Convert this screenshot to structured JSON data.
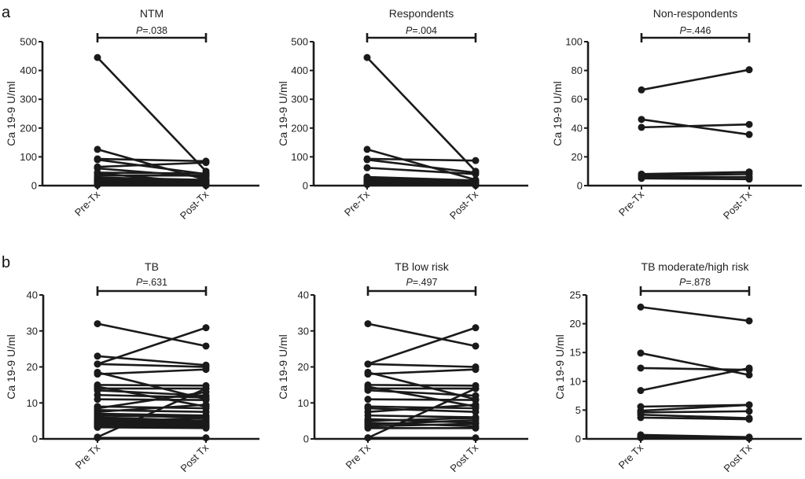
{
  "panel_labels": [
    "a",
    "b"
  ],
  "chart_data": [
    {
      "type": "line",
      "panel": "a",
      "title": "NTM",
      "ylabel": "Ca 19-9 U/ml",
      "xlabel": "",
      "categories": [
        "Pre-Tx",
        "Post-Tx"
      ],
      "ylim": [
        0,
        500
      ],
      "yticks": [
        0,
        100,
        200,
        300,
        400,
        500
      ],
      "p_value": "P=.038",
      "series": [
        {
          "name": "s1",
          "values": [
            445,
            50
          ]
        },
        {
          "name": "s2",
          "values": [
            126,
            20
          ]
        },
        {
          "name": "s3",
          "values": [
            93,
            85
          ]
        },
        {
          "name": "s4",
          "values": [
            90,
            40
          ]
        },
        {
          "name": "s5",
          "values": [
            65,
            80
          ]
        },
        {
          "name": "s6",
          "values": [
            60,
            30
          ]
        },
        {
          "name": "s7",
          "values": [
            45,
            42
          ]
        },
        {
          "name": "s8",
          "values": [
            43,
            9
          ]
        },
        {
          "name": "s9",
          "values": [
            35,
            35
          ]
        },
        {
          "name": "s10",
          "values": [
            28,
            20
          ]
        },
        {
          "name": "s11",
          "values": [
            25,
            15
          ]
        },
        {
          "name": "s12",
          "values": [
            22,
            12
          ]
        },
        {
          "name": "s13",
          "values": [
            20,
            10
          ]
        },
        {
          "name": "s14",
          "values": [
            18,
            8
          ]
        },
        {
          "name": "s15",
          "values": [
            15,
            6
          ]
        },
        {
          "name": "s16",
          "values": [
            12,
            5
          ]
        },
        {
          "name": "s17",
          "values": [
            10,
            4
          ]
        },
        {
          "name": "s18",
          "values": [
            8,
            3
          ]
        },
        {
          "name": "s19",
          "values": [
            6,
            2
          ]
        },
        {
          "name": "s20",
          "values": [
            5,
            7
          ]
        },
        {
          "name": "s21",
          "values": [
            4,
            1
          ]
        },
        {
          "name": "s22",
          "values": [
            2,
            1
          ]
        }
      ]
    },
    {
      "type": "line",
      "panel": "a",
      "title": "Respondents",
      "ylabel": "Ca 19-9 U/ml",
      "xlabel": "",
      "categories": [
        "Pre-Tx",
        "Post-Tx"
      ],
      "ylim": [
        0,
        500
      ],
      "yticks": [
        0,
        100,
        200,
        300,
        400,
        500
      ],
      "p_value": "P=.004",
      "series": [
        {
          "name": "s1",
          "values": [
            445,
            50
          ]
        },
        {
          "name": "s2",
          "values": [
            126,
            20
          ]
        },
        {
          "name": "s3",
          "values": [
            93,
            87
          ]
        },
        {
          "name": "s4",
          "values": [
            90,
            45
          ]
        },
        {
          "name": "s5",
          "values": [
            62,
            40
          ]
        },
        {
          "name": "s6",
          "values": [
            30,
            18
          ]
        },
        {
          "name": "s7",
          "values": [
            25,
            15
          ]
        },
        {
          "name": "s8",
          "values": [
            22,
            12
          ]
        },
        {
          "name": "s9",
          "values": [
            20,
            10
          ]
        },
        {
          "name": "s10",
          "values": [
            18,
            8
          ]
        },
        {
          "name": "s11",
          "values": [
            15,
            6
          ]
        },
        {
          "name": "s12",
          "values": [
            12,
            5
          ]
        },
        {
          "name": "s13",
          "values": [
            10,
            4
          ]
        },
        {
          "name": "s14",
          "values": [
            8,
            3
          ]
        },
        {
          "name": "s15",
          "values": [
            6,
            2
          ]
        },
        {
          "name": "s16",
          "values": [
            4,
            1
          ]
        }
      ]
    },
    {
      "type": "line",
      "panel": "a",
      "title": "Non-respondents",
      "ylabel": "Ca 19-9 U/ml",
      "xlabel": "",
      "categories": [
        "Pre-Tx",
        "Post-Tx"
      ],
      "ylim": [
        0,
        100
      ],
      "yticks": [
        0,
        20,
        40,
        60,
        80,
        100
      ],
      "p_value": "P=.446",
      "series": [
        {
          "name": "s1",
          "values": [
            66.5,
            80.5
          ]
        },
        {
          "name": "s2",
          "values": [
            46,
            35.5
          ]
        },
        {
          "name": "s3",
          "values": [
            40.5,
            42.5
          ]
        },
        {
          "name": "s4",
          "values": [
            8,
            9.5
          ]
        },
        {
          "name": "s5",
          "values": [
            7,
            8
          ]
        },
        {
          "name": "s6",
          "values": [
            6,
            6
          ]
        },
        {
          "name": "s7",
          "values": [
            5,
            4.5
          ]
        }
      ]
    },
    {
      "type": "line",
      "panel": "b",
      "title": "TB",
      "ylabel": "Ca 19-9 U/ml",
      "xlabel": "",
      "categories": [
        "Pre Tx",
        "Post Tx"
      ],
      "ylim": [
        0,
        40
      ],
      "yticks": [
        0,
        10,
        20,
        30,
        40
      ],
      "p_value": "P=.631",
      "series": [
        {
          "name": "s1",
          "values": [
            32,
            25.8
          ]
        },
        {
          "name": "s2",
          "values": [
            23,
            20.5
          ]
        },
        {
          "name": "s3",
          "values": [
            20.8,
            30.9
          ]
        },
        {
          "name": "s4",
          "values": [
            20.8,
            20
          ]
        },
        {
          "name": "s5",
          "values": [
            18.5,
            11
          ]
        },
        {
          "name": "s6",
          "values": [
            18,
            19.3
          ]
        },
        {
          "name": "s7",
          "values": [
            15,
            14.8
          ]
        },
        {
          "name": "s8",
          "values": [
            14.5,
            9
          ]
        },
        {
          "name": "s9",
          "values": [
            14,
            14
          ]
        },
        {
          "name": "s10",
          "values": [
            13.5,
            12
          ]
        },
        {
          "name": "s11",
          "values": [
            12.2,
            11.5
          ]
        },
        {
          "name": "s12",
          "values": [
            11,
            10.8
          ]
        },
        {
          "name": "s13",
          "values": [
            9,
            8.5
          ]
        },
        {
          "name": "s14",
          "values": [
            8.5,
            13
          ]
        },
        {
          "name": "s15",
          "values": [
            8,
            7.5
          ]
        },
        {
          "name": "s16",
          "values": [
            7.5,
            9.5
          ]
        },
        {
          "name": "s17",
          "values": [
            7,
            6.5
          ]
        },
        {
          "name": "s18",
          "values": [
            6.5,
            6
          ]
        },
        {
          "name": "s19",
          "values": [
            6,
            5
          ]
        },
        {
          "name": "s20",
          "values": [
            5.5,
            4.5
          ]
        },
        {
          "name": "s21",
          "values": [
            5,
            4
          ]
        },
        {
          "name": "s22",
          "values": [
            4.8,
            5.8
          ]
        },
        {
          "name": "s23",
          "values": [
            4.5,
            3.5
          ]
        },
        {
          "name": "s24",
          "values": [
            4.2,
            3.8
          ]
        },
        {
          "name": "s25",
          "values": [
            4,
            5.2
          ]
        },
        {
          "name": "s26",
          "values": [
            3.8,
            3.2
          ]
        },
        {
          "name": "s27",
          "values": [
            3.5,
            4.2
          ]
        },
        {
          "name": "s28",
          "values": [
            3.2,
            3
          ]
        },
        {
          "name": "s29",
          "values": [
            0.5,
            14
          ]
        },
        {
          "name": "s30",
          "values": [
            0.3,
            0.3
          ]
        }
      ]
    },
    {
      "type": "line",
      "panel": "b",
      "title": "TB low risk",
      "ylabel": "Ca 19-9 U/ml",
      "xlabel": "",
      "categories": [
        "Pre Tx",
        "Post Tx"
      ],
      "ylim": [
        0,
        40
      ],
      "yticks": [
        0,
        10,
        20,
        30,
        40
      ],
      "p_value": "P=.497",
      "series": [
        {
          "name": "s1",
          "values": [
            32,
            25.8
          ]
        },
        {
          "name": "s2",
          "values": [
            20.8,
            30.9
          ]
        },
        {
          "name": "s3",
          "values": [
            20.8,
            20
          ]
        },
        {
          "name": "s4",
          "values": [
            18.5,
            11
          ]
        },
        {
          "name": "s5",
          "values": [
            18,
            19.3
          ]
        },
        {
          "name": "s6",
          "values": [
            15,
            14.8
          ]
        },
        {
          "name": "s7",
          "values": [
            14.5,
            9
          ]
        },
        {
          "name": "s8",
          "values": [
            14,
            14
          ]
        },
        {
          "name": "s9",
          "values": [
            13.5,
            12
          ]
        },
        {
          "name": "s10",
          "values": [
            11,
            10.8
          ]
        },
        {
          "name": "s11",
          "values": [
            9,
            8.5
          ]
        },
        {
          "name": "s12",
          "values": [
            8.5,
            7.5
          ]
        },
        {
          "name": "s13",
          "values": [
            7.5,
            9.5
          ]
        },
        {
          "name": "s14",
          "values": [
            6.5,
            6
          ]
        },
        {
          "name": "s15",
          "values": [
            5.5,
            4.5
          ]
        },
        {
          "name": "s16",
          "values": [
            5,
            5.8
          ]
        },
        {
          "name": "s17",
          "values": [
            4.5,
            3.5
          ]
        },
        {
          "name": "s18",
          "values": [
            4,
            5.2
          ]
        },
        {
          "name": "s19",
          "values": [
            3.5,
            4.2
          ]
        },
        {
          "name": "s20",
          "values": [
            3,
            3
          ]
        },
        {
          "name": "s21",
          "values": [
            0.3,
            14
          ]
        },
        {
          "name": "s22",
          "values": [
            0.3,
            0.3
          ]
        }
      ]
    },
    {
      "type": "line",
      "panel": "b",
      "title": "TB moderate/high risk",
      "ylabel": "Ca 19-9 U/ml",
      "xlabel": "",
      "categories": [
        "Pre Tx",
        "Post Tx"
      ],
      "ylim": [
        0,
        25
      ],
      "yticks": [
        0,
        5,
        10,
        15,
        20,
        25
      ],
      "p_value": "P=.878",
      "series": [
        {
          "name": "s1",
          "values": [
            22.9,
            20.5
          ]
        },
        {
          "name": "s2",
          "values": [
            14.9,
            11.1
          ]
        },
        {
          "name": "s3",
          "values": [
            12.3,
            12.0
          ]
        },
        {
          "name": "s4",
          "values": [
            8.4,
            12.3
          ]
        },
        {
          "name": "s5",
          "values": [
            5.6,
            5.9
          ]
        },
        {
          "name": "s6",
          "values": [
            4.9,
            5.9
          ]
        },
        {
          "name": "s7",
          "values": [
            4.6,
            4.8
          ]
        },
        {
          "name": "s8",
          "values": [
            4.2,
            3.6
          ]
        },
        {
          "name": "s9",
          "values": [
            3.7,
            3.4
          ]
        },
        {
          "name": "s10",
          "values": [
            0.7,
            0.3
          ]
        },
        {
          "name": "s11",
          "values": [
            0.4,
            0.2
          ]
        },
        {
          "name": "s12",
          "values": [
            0.2,
            0.1
          ]
        }
      ]
    }
  ]
}
